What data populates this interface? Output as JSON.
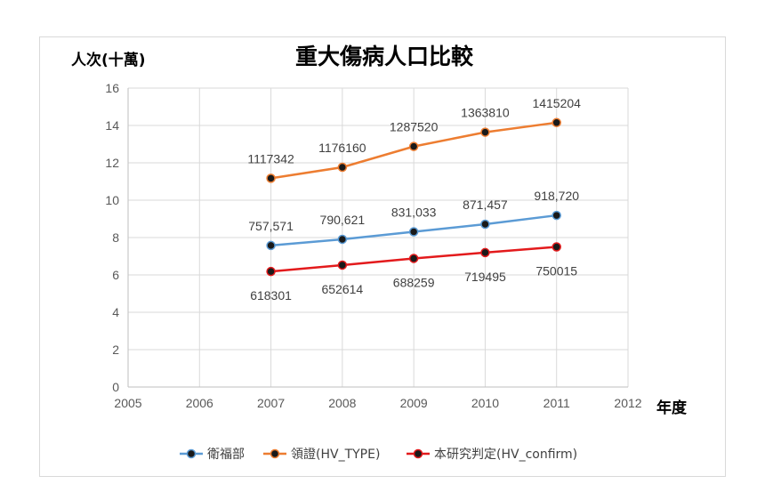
{
  "chart_data": {
    "type": "line",
    "title": "重大傷病人口比較",
    "ylabel": "人次(十萬)",
    "xlabel": "年度",
    "xlim": [
      2005,
      2012
    ],
    "ylim": [
      0,
      16
    ],
    "x_ticks": [
      2005,
      2006,
      2007,
      2008,
      2009,
      2010,
      2011,
      2012
    ],
    "y_ticks": [
      0,
      2,
      4,
      6,
      8,
      10,
      12,
      14,
      16
    ],
    "grid": true,
    "legend_position": "bottom",
    "x": [
      2007,
      2008,
      2009,
      2010,
      2011
    ],
    "series": [
      {
        "name": "衛福部",
        "color": "#5b9bd5",
        "values": [
          7.57571,
          7.90621,
          8.31033,
          8.71457,
          9.1872
        ],
        "labels": [
          "757,571",
          "790,621",
          "831,033",
          "871,457",
          "918,720"
        ]
      },
      {
        "name": "領證(HV_TYPE)",
        "color": "#ed7d31",
        "values": [
          11.17342,
          11.7616,
          12.8752,
          13.6381,
          14.15204
        ],
        "labels": [
          "1117342",
          "1176160",
          "1287520",
          "1363810",
          "1415204"
        ]
      },
      {
        "name": "本研究判定(HV_confirm)",
        "color": "#e31a1c",
        "values": [
          6.18301,
          6.52614,
          6.88259,
          7.19495,
          7.50015
        ],
        "labels": [
          "618301",
          "652614",
          "688259",
          "719495",
          "750015"
        ]
      }
    ]
  }
}
